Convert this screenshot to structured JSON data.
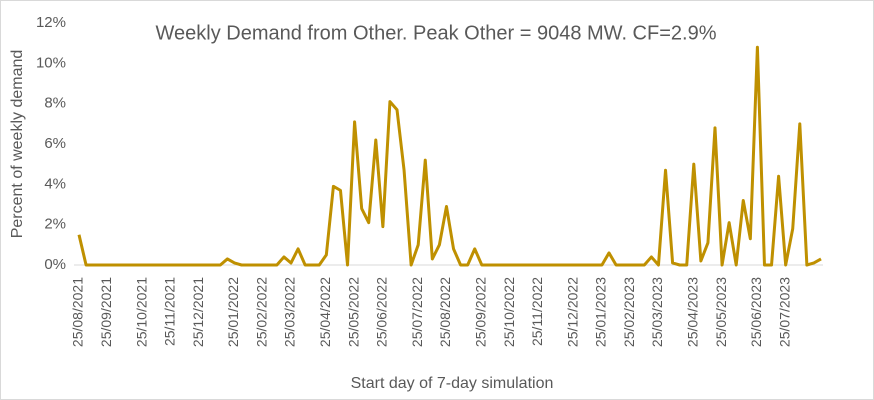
{
  "chart_data": {
    "type": "line",
    "title": "Weekly Demand from Other. Peak Other = 9048 MW. CF=2.9%",
    "x_label": "Start day of 7-day simulation",
    "y_label": "Percent of weekly demand",
    "categories": [
      "25/08/2021",
      null,
      null,
      null,
      "25/09/2021",
      null,
      null,
      null,
      null,
      "25/10/2021",
      null,
      null,
      null,
      "25/11/2021",
      null,
      null,
      null,
      "25/12/2021",
      null,
      null,
      null,
      null,
      "25/01/2022",
      null,
      null,
      null,
      "25/02/2022",
      null,
      null,
      null,
      "25/03/2022",
      null,
      null,
      null,
      null,
      "25/04/2022",
      null,
      null,
      null,
      "25/05/2022",
      null,
      null,
      null,
      "25/06/2022",
      null,
      null,
      null,
      null,
      "25/07/2022",
      null,
      null,
      null,
      "25/08/2022",
      null,
      null,
      null,
      null,
      "25/09/2022",
      null,
      null,
      null,
      "25/10/2022",
      null,
      null,
      null,
      "25/11/2022",
      null,
      null,
      null,
      null,
      "25/12/2022",
      null,
      null,
      null,
      "25/01/2023",
      null,
      null,
      null,
      "25/02/2023",
      null,
      null,
      null,
      "25/03/2023",
      null,
      null,
      null,
      null,
      "25/04/2023",
      null,
      null,
      null,
      "25/05/2023",
      null,
      null,
      null,
      null,
      "25/06/2023",
      null,
      null,
      null,
      "25/07/2023",
      null,
      null,
      null,
      null,
      null
    ],
    "series": [
      {
        "name": "Other",
        "color": "#bf9000",
        "values": [
          1.5,
          0,
          0,
          0,
          0,
          0,
          0,
          0,
          0,
          0,
          0,
          0,
          0,
          0,
          0,
          0,
          0,
          0,
          0,
          0,
          0,
          0.3,
          0.1,
          0,
          0,
          0,
          0,
          0,
          0,
          0.4,
          0.1,
          0.8,
          0,
          0,
          0,
          0.5,
          3.9,
          3.7,
          0,
          7.1,
          2.8,
          2.1,
          6.2,
          1.9,
          8.1,
          7.7,
          4.7,
          0,
          1.0,
          5.2,
          0.3,
          1.0,
          2.9,
          0.8,
          0,
          0,
          0.8,
          0,
          0,
          0,
          0,
          0,
          0,
          0,
          0,
          0,
          0,
          0,
          0,
          0,
          0,
          0,
          0,
          0,
          0,
          0.6,
          0,
          0,
          0,
          0,
          0,
          0.4,
          0,
          4.7,
          0.1,
          0,
          0,
          5.0,
          0.2,
          1.1,
          6.8,
          0,
          2.1,
          0,
          3.2,
          1.3,
          10.8,
          0,
          0,
          4.4,
          0,
          1.8,
          7.0,
          0,
          0.1,
          0.3
        ]
      }
    ],
    "ylim": [
      0,
      12
    ],
    "yticks": [
      {
        "value": 0,
        "label": "0%"
      },
      {
        "value": 2,
        "label": "2%"
      },
      {
        "value": 4,
        "label": "4%"
      },
      {
        "value": 6,
        "label": "6%"
      },
      {
        "value": 8,
        "label": "8%"
      },
      {
        "value": 10,
        "label": "10%"
      },
      {
        "value": 12,
        "label": "12%"
      }
    ],
    "grid": false
  }
}
